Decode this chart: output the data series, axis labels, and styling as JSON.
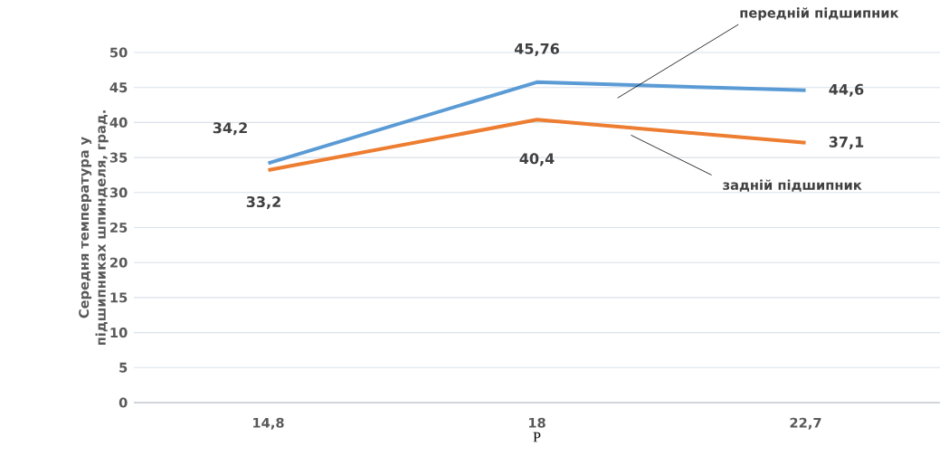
{
  "chart_data": {
    "type": "line",
    "ylabel": "Середня температура у підшипниках шпинделя, град.",
    "xlabel": "P",
    "categories": [
      "14,8",
      "18",
      "22,7"
    ],
    "series": [
      {
        "name": "передній підшипник",
        "color": "#5b9bd5",
        "values": [
          34.2,
          45.76,
          44.6
        ],
        "value_labels": [
          "34,2",
          "45,76",
          "44,6"
        ]
      },
      {
        "name": "задній підшипник",
        "color": "#ed7d31",
        "values": [
          33.2,
          40.4,
          37.1
        ],
        "value_labels": [
          "33,2",
          "40,4",
          "37,1"
        ]
      }
    ],
    "ylim": [
      0,
      50
    ],
    "yticks": [
      0,
      5,
      10,
      15,
      20,
      25,
      30,
      35,
      40,
      45,
      50
    ],
    "grid": "y",
    "legend": false
  }
}
